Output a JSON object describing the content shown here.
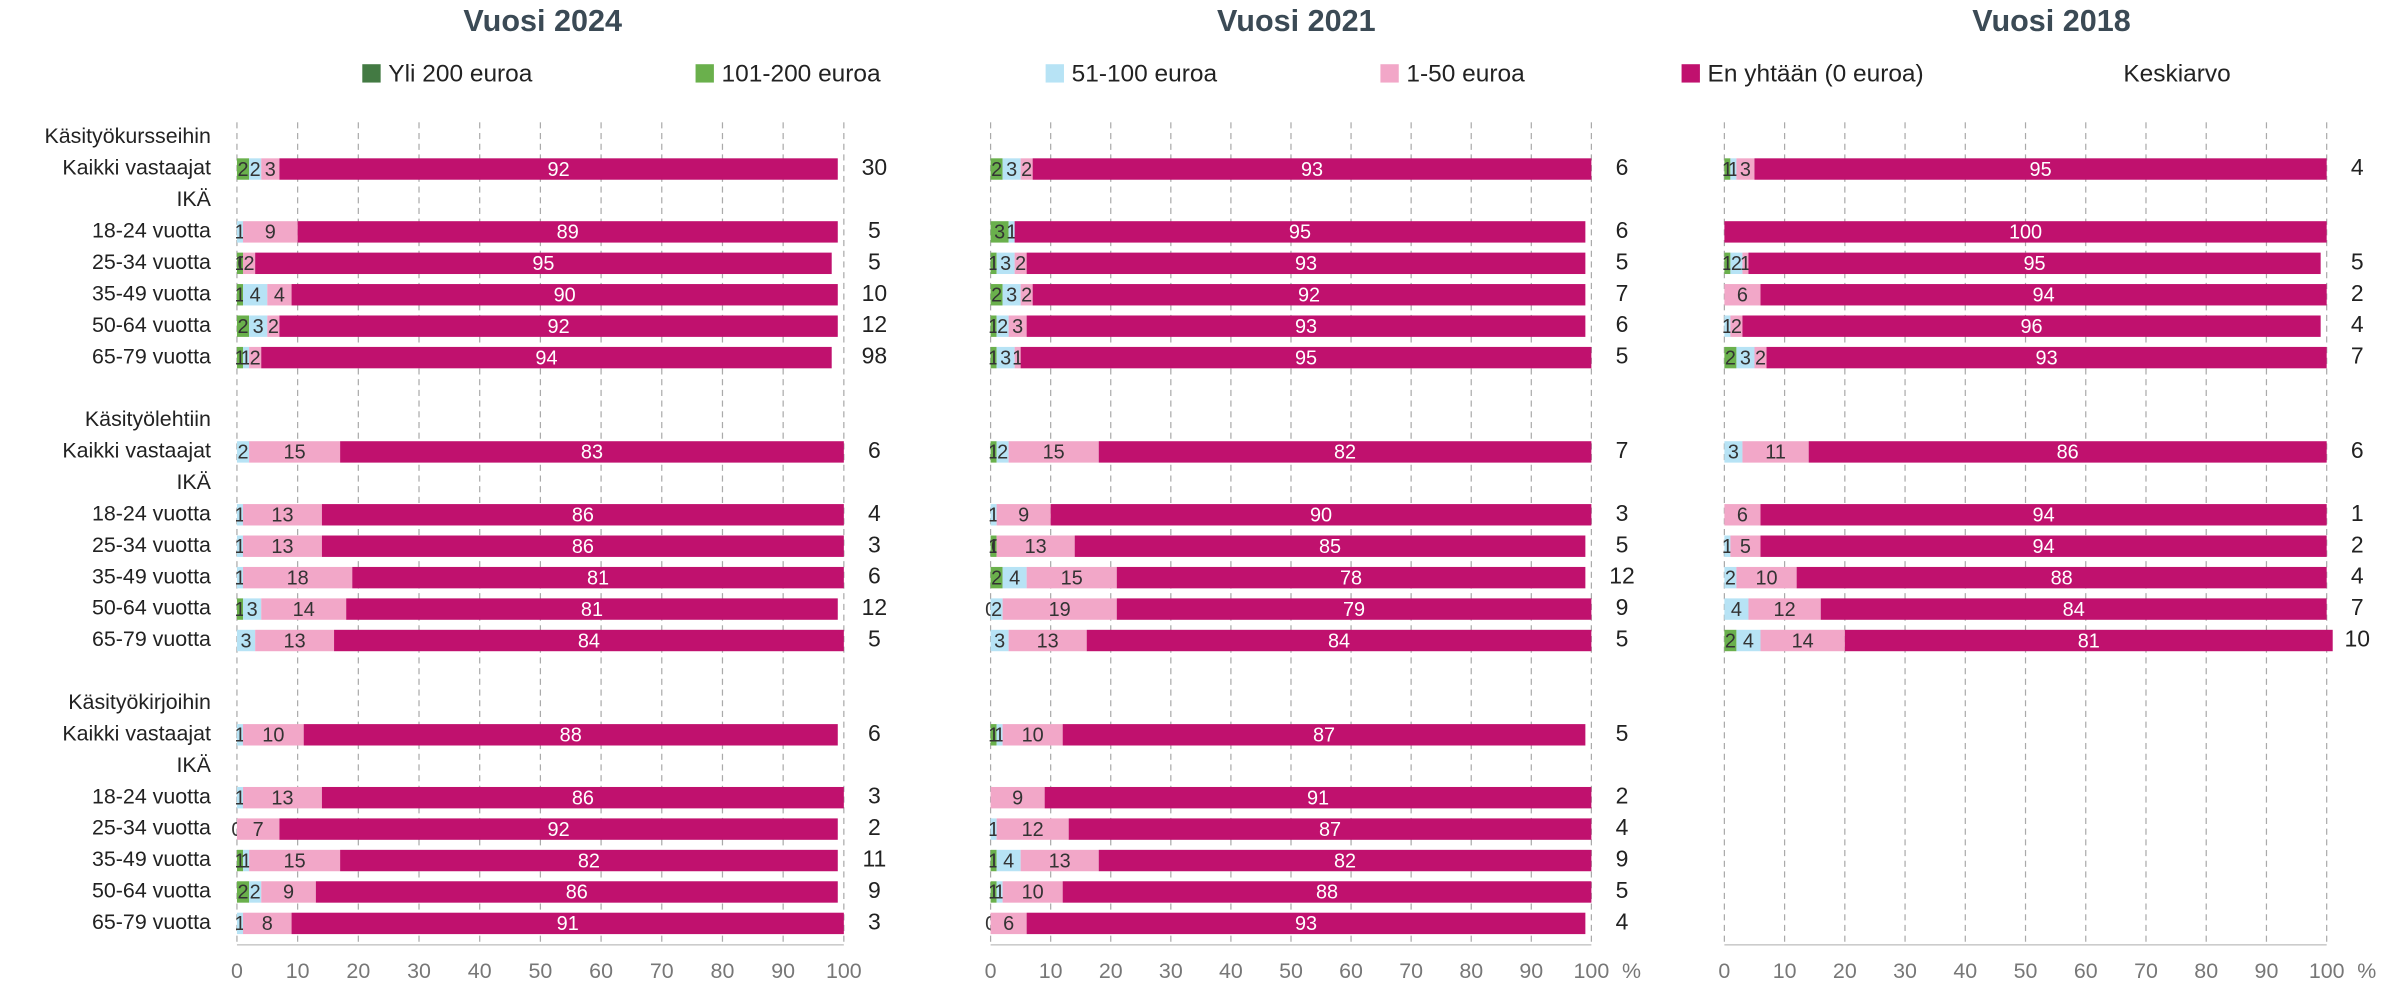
{
  "chart_data": [
    {
      "type": "bar",
      "title": "Vuosi 2024",
      "mean_label": "Keskiarvo",
      "categories": [
        "Käsityökursseihin",
        "Kaikki vastaajat",
        "IKÄ",
        "18-24 vuotta",
        "25-34 vuotta",
        "35-49 vuotta",
        "50-64 vuotta",
        "65-79 vuotta",
        null,
        "Käsityölehtiin",
        "Kaikki vastaajat",
        "IKÄ",
        "18-24 vuotta",
        "25-34 vuotta",
        "35-49 vuotta",
        "50-64 vuotta",
        "65-79 vuotta",
        null,
        "Käsityökirjoihin",
        "Kaikki vastaajat",
        "IKÄ",
        "18-24 vuotta",
        "25-34 vuotta",
        "35-49 vuotta",
        "50-64 vuotta",
        "65-79 vuotta"
      ],
      "series": [
        {
          "name": "Yli 200 euroa",
          "color": "#437a43",
          "values": [
            null,
            null,
            null,
            null,
            null,
            null,
            null,
            null,
            null,
            null,
            null,
            null,
            null,
            null,
            null,
            null,
            null,
            null,
            null,
            null,
            null,
            null,
            null,
            null,
            null,
            null
          ]
        },
        {
          "name": "101-200 euroa",
          "color": "#6ab04c",
          "values": [
            null,
            2,
            null,
            null,
            1,
            1,
            2,
            1,
            null,
            null,
            null,
            null,
            null,
            null,
            null,
            1,
            null,
            null,
            null,
            null,
            null,
            null,
            null,
            1,
            2,
            null
          ]
        },
        {
          "name": "51-100 euroa",
          "color": "#b7e3f5",
          "values": [
            null,
            2,
            null,
            1,
            0,
            4,
            3,
            1,
            null,
            null,
            2,
            null,
            1,
            1,
            1,
            3,
            3,
            null,
            null,
            1,
            null,
            1,
            0,
            1,
            2,
            1
          ]
        },
        {
          "name": "1-50 euroa",
          "color": "#f2a7c8",
          "values": [
            null,
            3,
            null,
            9,
            2,
            4,
            2,
            2,
            null,
            null,
            15,
            null,
            13,
            13,
            18,
            14,
            13,
            null,
            null,
            10,
            null,
            13,
            7,
            15,
            9,
            8
          ]
        },
        {
          "name": "En yhtään (0 euroa)",
          "color": "#c0116e",
          "values": [
            null,
            92,
            null,
            89,
            95,
            90,
            92,
            94,
            null,
            null,
            83,
            null,
            86,
            86,
            81,
            81,
            84,
            null,
            null,
            88,
            null,
            86,
            92,
            82,
            86,
            91
          ]
        }
      ],
      "means": [
        null,
        30,
        null,
        5,
        5,
        10,
        12,
        98,
        null,
        null,
        6,
        null,
        4,
        3,
        6,
        12,
        5,
        null,
        null,
        6,
        null,
        3,
        2,
        11,
        9,
        3
      ],
      "xlim": [
        0,
        100
      ],
      "xticks": [
        0,
        10,
        20,
        30,
        40,
        50,
        60,
        70,
        80,
        90,
        100
      ],
      "grid": true
    },
    {
      "type": "bar",
      "title": "Vuosi 2021",
      "unit": "%",
      "series": [
        {
          "color": "#437a43",
          "values": [
            null,
            null,
            null,
            null,
            null,
            null,
            null,
            null,
            null,
            null,
            null,
            null,
            null,
            null,
            null,
            null,
            null,
            null,
            null,
            null,
            null,
            null,
            null,
            null,
            null,
            null
          ]
        },
        {
          "color": "#6ab04c",
          "values": [
            null,
            2,
            null,
            3,
            1,
            2,
            1,
            1,
            null,
            null,
            1,
            null,
            null,
            1,
            2,
            0,
            null,
            null,
            null,
            1,
            null,
            null,
            null,
            1,
            1,
            null
          ]
        },
        {
          "color": "#b7e3f5",
          "values": [
            null,
            3,
            null,
            1,
            3,
            3,
            2,
            3,
            null,
            null,
            2,
            null,
            1,
            0,
            4,
            2,
            3,
            null,
            null,
            1,
            null,
            null,
            1,
            4,
            1,
            0
          ]
        },
        {
          "color": "#f2a7c8",
          "values": [
            null,
            2,
            null,
            null,
            2,
            2,
            3,
            1,
            null,
            null,
            15,
            null,
            9,
            13,
            15,
            19,
            13,
            null,
            null,
            10,
            null,
            9,
            12,
            13,
            10,
            6
          ]
        },
        {
          "color": "#c0116e",
          "values": [
            null,
            93,
            null,
            95,
            93,
            92,
            93,
            95,
            null,
            null,
            82,
            null,
            90,
            85,
            78,
            79,
            84,
            null,
            null,
            87,
            null,
            91,
            87,
            82,
            88,
            93
          ]
        }
      ],
      "means": [
        null,
        6,
        null,
        6,
        5,
        7,
        6,
        5,
        null,
        null,
        7,
        null,
        3,
        5,
        12,
        9,
        5,
        null,
        null,
        5,
        null,
        2,
        4,
        9,
        5,
        4
      ],
      "xlim": [
        0,
        100
      ],
      "xticks": [
        0,
        10,
        20,
        30,
        40,
        50,
        60,
        70,
        80,
        90,
        100
      ],
      "grid": true
    },
    {
      "type": "bar",
      "title": "Vuosi 2018",
      "unit": "%",
      "series": [
        {
          "color": "#437a43",
          "values": [
            null,
            null,
            null,
            null,
            null,
            null,
            null,
            null,
            null,
            null,
            null,
            null,
            null,
            null,
            null,
            null,
            null,
            null,
            null,
            null,
            null,
            null,
            null,
            null,
            null,
            null
          ]
        },
        {
          "color": "#6ab04c",
          "values": [
            null,
            1,
            null,
            null,
            1,
            null,
            null,
            2,
            null,
            null,
            null,
            null,
            null,
            null,
            null,
            null,
            2,
            null,
            null,
            null,
            null,
            null,
            null,
            null,
            null,
            null
          ]
        },
        {
          "color": "#b7e3f5",
          "values": [
            null,
            1,
            null,
            null,
            2,
            null,
            1,
            3,
            null,
            null,
            3,
            null,
            null,
            1,
            2,
            4,
            4,
            null,
            null,
            null,
            null,
            null,
            null,
            null,
            null,
            null
          ]
        },
        {
          "color": "#f2a7c8",
          "values": [
            null,
            3,
            null,
            null,
            1,
            6,
            2,
            2,
            null,
            null,
            11,
            null,
            6,
            5,
            10,
            12,
            14,
            null,
            null,
            null,
            null,
            null,
            null,
            null,
            null,
            null
          ]
        },
        {
          "color": "#c0116e",
          "values": [
            null,
            95,
            null,
            100,
            95,
            94,
            96,
            93,
            null,
            null,
            86,
            null,
            94,
            94,
            88,
            84,
            81,
            null,
            null,
            null,
            null,
            null,
            null,
            null,
            null,
            null
          ]
        }
      ],
      "means": [
        null,
        4,
        null,
        null,
        5,
        2,
        4,
        7,
        null,
        null,
        6,
        null,
        1,
        2,
        4,
        7,
        10,
        null,
        null,
        null,
        null,
        null,
        null,
        null,
        null,
        null
      ],
      "xlim": [
        0,
        100
      ],
      "xticks": [
        0,
        10,
        20,
        30,
        40,
        50,
        60,
        70,
        80,
        90,
        100
      ],
      "grid": true
    }
  ]
}
